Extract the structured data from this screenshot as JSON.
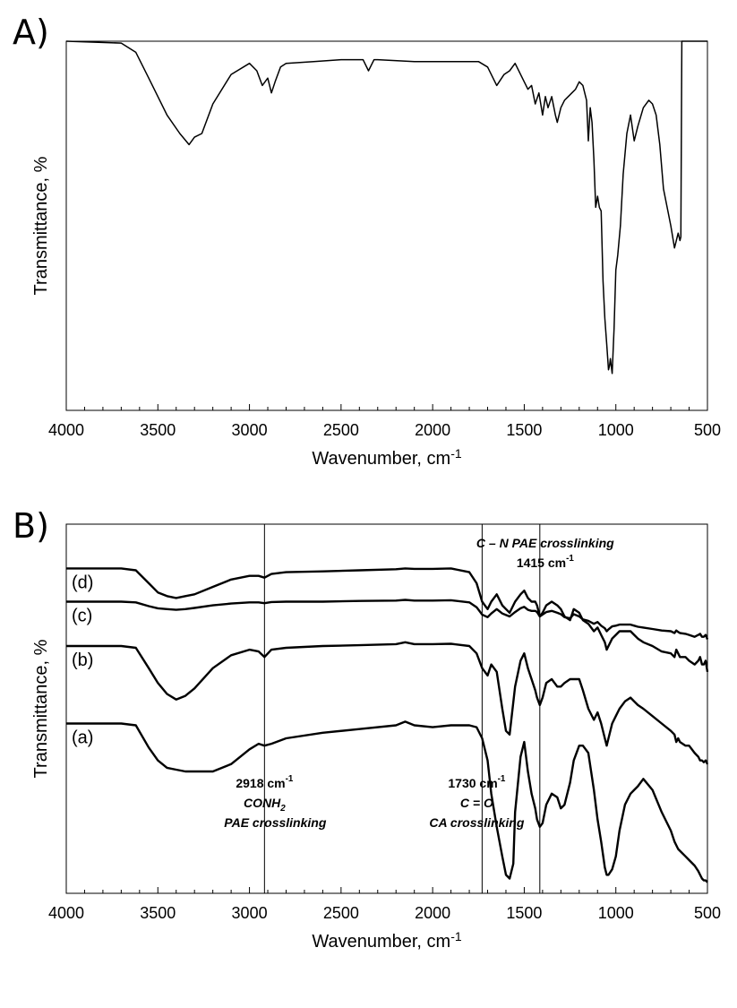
{
  "chart_data": [
    {
      "panel": "A)",
      "type": "line",
      "xlabel": "Wavenumber, cm",
      "xlabel_sup": "-1",
      "ylabel": "Transmittance, %",
      "xlim": [
        4000,
        500
      ],
      "xticks": [
        4000,
        3500,
        3000,
        2500,
        2000,
        1500,
        1000,
        500
      ],
      "ylim": [
        0,
        100
      ],
      "series": [
        {
          "x": [
            4000,
            3700,
            3620,
            3550,
            3450,
            3380,
            3330,
            3300,
            3260,
            3200,
            3100,
            3000,
            2960,
            2930,
            2900,
            2880,
            2860,
            2830,
            2800,
            2650,
            2500,
            2380,
            2350,
            2320,
            2300,
            2100,
            1900,
            1750,
            1700,
            1650,
            1610,
            1580,
            1550,
            1500,
            1480,
            1460,
            1440,
            1420,
            1400,
            1385,
            1370,
            1350,
            1330,
            1320,
            1300,
            1280,
            1260,
            1240,
            1220,
            1200,
            1180,
            1160,
            1150,
            1140,
            1130,
            1120,
            1110,
            1100,
            1090,
            1080,
            1070,
            1060,
            1050,
            1040,
            1035,
            1030,
            1020,
            1010,
            1000,
            990,
            975,
            960,
            940,
            920,
            900,
            880,
            850,
            820,
            800,
            780,
            760,
            740,
            720,
            700,
            680,
            660,
            650,
            645,
            640,
            630,
            620,
            600,
            550,
            500
          ],
          "y": [
            100,
            99.5,
            97,
            90,
            80,
            75,
            72,
            74,
            75,
            83,
            91,
            94,
            92,
            88,
            90,
            86,
            89,
            93,
            94,
            94.5,
            95,
            95,
            92,
            95,
            95,
            94.5,
            94.5,
            94.5,
            93,
            88,
            91,
            92,
            94,
            89,
            87,
            88,
            83,
            86,
            80,
            85,
            82,
            85,
            80,
            78,
            82,
            84,
            85,
            86,
            87,
            89,
            88,
            84,
            73,
            82,
            78,
            68,
            55,
            58,
            55,
            54,
            35,
            25,
            18,
            11,
            12,
            14,
            10,
            22,
            38,
            42,
            50,
            64,
            75,
            80,
            73,
            77,
            82,
            84,
            83,
            80,
            72,
            60,
            55,
            50,
            44,
            48,
            46,
            47,
            100,
            100,
            100,
            100,
            100,
            100
          ]
        }
      ]
    },
    {
      "panel": "B)",
      "type": "line",
      "xlabel": "Wavenumber, cm",
      "xlabel_sup": "-1",
      "ylabel": "Transmittance, %",
      "xlim": [
        4000,
        500
      ],
      "xticks": [
        4000,
        3500,
        3000,
        2500,
        2000,
        1500,
        1000,
        500
      ],
      "ylim": [
        0,
        100
      ],
      "reference_lines": [
        {
          "x": 2918,
          "labels": [
            "2918 cm",
            "CONH",
            "PAE crosslinking"
          ],
          "sup": "-1",
          "sub": "2"
        },
        {
          "x": 1730,
          "labels": [
            "1730 cm",
            "C = O",
            "CA crosslinking"
          ],
          "sup": "-1"
        },
        {
          "x": 1415,
          "labels": [
            "C – N PAE crosslinking",
            "1415 cm"
          ],
          "sup": "-1"
        }
      ],
      "series": [
        {
          "name": "(d)",
          "x": [
            4000,
            3700,
            3620,
            3550,
            3500,
            3450,
            3400,
            3350,
            3300,
            3200,
            3100,
            3000,
            2950,
            2918,
            2880,
            2800,
            2600,
            2400,
            2200,
            2150,
            2100,
            2000,
            1900,
            1800,
            1760,
            1730,
            1700,
            1680,
            1650,
            1620,
            1600,
            1580,
            1550,
            1520,
            1500,
            1480,
            1460,
            1440,
            1430,
            1415,
            1400,
            1380,
            1350,
            1320,
            1300,
            1280,
            1250,
            1230,
            1200,
            1180,
            1150,
            1120,
            1100,
            1080,
            1060,
            1050,
            1040,
            1020,
            1000,
            980,
            950,
            920,
            900,
            880,
            850,
            800,
            750,
            700,
            680,
            670,
            660,
            650,
            620,
            600,
            570,
            550,
            540,
            530,
            520,
            510,
            500
          ],
          "y": [
            88,
            88,
            87.5,
            84,
            81.5,
            80.5,
            80,
            80.5,
            81,
            83,
            85,
            86,
            86,
            85.5,
            86.5,
            87,
            87.2,
            87.5,
            87.8,
            88,
            87.9,
            87.9,
            88,
            87,
            84,
            79,
            77,
            79,
            81,
            78,
            77,
            76,
            79,
            81,
            82,
            80,
            79,
            79,
            78,
            75,
            76,
            78,
            79,
            78,
            77,
            75,
            74,
            77,
            76,
            74,
            73,
            71,
            72,
            70,
            68,
            66,
            67,
            69,
            70,
            71,
            71,
            71,
            70,
            69,
            68,
            67,
            65.5,
            65,
            64,
            66,
            65,
            64,
            64,
            63,
            62,
            63,
            64,
            62,
            62,
            63,
            60
          ]
        },
        {
          "name": "(c)",
          "x": [
            4000,
            3700,
            3620,
            3550,
            3500,
            3450,
            3400,
            3350,
            3300,
            3200,
            3100,
            3000,
            2950,
            2918,
            2880,
            2800,
            2600,
            2400,
            2200,
            2150,
            2100,
            2000,
            1900,
            1800,
            1760,
            1730,
            1700,
            1680,
            1650,
            1620,
            1600,
            1580,
            1550,
            1520,
            1500,
            1480,
            1460,
            1440,
            1430,
            1415,
            1400,
            1380,
            1350,
            1320,
            1300,
            1280,
            1250,
            1230,
            1200,
            1180,
            1150,
            1120,
            1100,
            1080,
            1060,
            1050,
            1040,
            1020,
            1000,
            980,
            950,
            920,
            900,
            880,
            850,
            800,
            750,
            700,
            680,
            670,
            660,
            650,
            620,
            600,
            570,
            550,
            540,
            530,
            520,
            510,
            500
          ],
          "y": [
            79,
            79,
            78.8,
            77.8,
            77.2,
            77,
            76.8,
            77,
            77.3,
            78,
            78.5,
            78.8,
            78.8,
            78.6,
            78.9,
            79,
            79,
            79.2,
            79.3,
            79.5,
            79.3,
            79.3,
            79.4,
            78.8,
            77.5,
            75.5,
            74.8,
            75.8,
            77,
            75.8,
            75.4,
            75,
            76.2,
            77.2,
            77.6,
            76.8,
            76.5,
            76.5,
            76.2,
            75,
            75.5,
            76.2,
            76.5,
            76,
            75.6,
            74.8,
            74.5,
            75.6,
            75,
            74.2,
            73.8,
            73,
            73.5,
            72.5,
            71.8,
            71,
            71.5,
            72.3,
            72.5,
            72.8,
            72.8,
            72.8,
            72.5,
            72.2,
            72,
            71.6,
            71.2,
            71,
            70.5,
            71.2,
            70.8,
            70.5,
            70.3,
            70,
            69.5,
            70,
            70.3,
            69.5,
            69.5,
            70,
            68.8
          ]
        },
        {
          "name": "(b)",
          "x": [
            4000,
            3700,
            3620,
            3550,
            3500,
            3450,
            3400,
            3350,
            3300,
            3200,
            3100,
            3000,
            2950,
            2918,
            2880,
            2800,
            2600,
            2400,
            2200,
            2150,
            2100,
            2000,
            1900,
            1800,
            1760,
            1730,
            1700,
            1680,
            1650,
            1620,
            1600,
            1580,
            1550,
            1520,
            1500,
            1480,
            1460,
            1440,
            1430,
            1415,
            1400,
            1380,
            1350,
            1320,
            1300,
            1280,
            1250,
            1230,
            1200,
            1180,
            1150,
            1120,
            1100,
            1080,
            1060,
            1050,
            1040,
            1020,
            1000,
            980,
            950,
            920,
            900,
            880,
            850,
            800,
            750,
            700,
            680,
            670,
            660,
            650,
            620,
            600,
            570,
            550,
            540,
            530,
            520,
            510,
            500
          ],
          "y": [
            67,
            67,
            66.5,
            61,
            57,
            54,
            52.5,
            53.5,
            55.5,
            61,
            64.5,
            66,
            65.5,
            64,
            66,
            66.5,
            67,
            67.2,
            67.5,
            68,
            67.5,
            67.5,
            67.6,
            67,
            65,
            61,
            59,
            62,
            60,
            50,
            44,
            43,
            56,
            63,
            65,
            61,
            58,
            55,
            53,
            51,
            53,
            57,
            58,
            56,
            56,
            57,
            58,
            58,
            58,
            55,
            50,
            47,
            49,
            46,
            42,
            40,
            42,
            46,
            48,
            50,
            52,
            53,
            52,
            51,
            50,
            48,
            46,
            44,
            43,
            41,
            42,
            41,
            40,
            40,
            38,
            37,
            36,
            36,
            35.5,
            36,
            35
          ]
        },
        {
          "name": "(a)",
          "x": [
            4000,
            3700,
            3620,
            3550,
            3500,
            3450,
            3400,
            3350,
            3300,
            3200,
            3100,
            3000,
            2950,
            2918,
            2880,
            2800,
            2600,
            2400,
            2200,
            2150,
            2100,
            2000,
            1900,
            1800,
            1760,
            1730,
            1700,
            1680,
            1650,
            1620,
            1600,
            1580,
            1560,
            1550,
            1520,
            1500,
            1480,
            1460,
            1440,
            1430,
            1415,
            1400,
            1380,
            1350,
            1320,
            1300,
            1280,
            1250,
            1230,
            1200,
            1180,
            1150,
            1120,
            1100,
            1080,
            1060,
            1050,
            1040,
            1020,
            1000,
            980,
            950,
            920,
            900,
            880,
            850,
            800,
            750,
            700,
            680,
            670,
            660,
            650,
            620,
            600,
            570,
            550,
            540,
            530,
            520,
            510,
            500
          ],
          "y": [
            46,
            46,
            45.5,
            39.5,
            36,
            34,
            33.5,
            33,
            33,
            33,
            35,
            39,
            40.5,
            40,
            40.5,
            42,
            43.5,
            44.5,
            45.5,
            46.5,
            45.5,
            45,
            45.5,
            45.5,
            45,
            42,
            36,
            27,
            18,
            10,
            5,
            4,
            8,
            22,
            37,
            41,
            33,
            27,
            23,
            20,
            18,
            19,
            24,
            27,
            26,
            23,
            24,
            30,
            36,
            40,
            40,
            38,
            28,
            20,
            14,
            7,
            5,
            5,
            6.5,
            10,
            17,
            24,
            27,
            28,
            29,
            31,
            28,
            22,
            17,
            14,
            13,
            12,
            11.5,
            10,
            9,
            7.5,
            6,
            5,
            4,
            3.5,
            3.5,
            3
          ]
        }
      ]
    }
  ]
}
